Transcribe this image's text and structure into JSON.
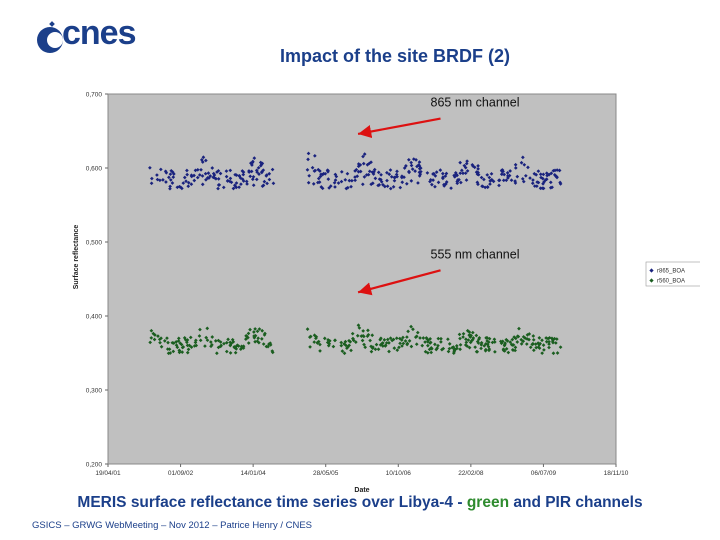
{
  "header": {
    "logo_text": "cnes",
    "title": "Impact of the site BRDF (2)"
  },
  "caption": {
    "part1": "MERIS surface reflectance time series over Libya-4 - ",
    "green_word": "green",
    "part2": " and ",
    "pir_word": "PIR",
    "part3": " channels"
  },
  "footer": {
    "text": "GSICS – GRWG WebMeeting – Nov 2012 – Patrice Henry / CNES"
  },
  "colors": {
    "series865": "#1a237e",
    "series555": "#1b5e20",
    "plot_bg": "#c0c0c0",
    "arrow": "#dd1111",
    "brand": "#1b3f8a"
  },
  "chart_data": {
    "type": "scatter",
    "xlabel": "Date",
    "ylabel": "Surface reflectance",
    "xlim": [
      "2001-04-19",
      "2010-11-15"
    ],
    "ylim": [
      0.2,
      0.7
    ],
    "x_ticks": [
      "19/04/01",
      "01/09/02",
      "14/01/04",
      "28/05/05",
      "10/10/06",
      "22/02/08",
      "06/07/09",
      "18/11/10"
    ],
    "y_ticks": [
      "0,200",
      "0,300",
      "0,400",
      "0,500",
      "0,600",
      "0,700"
    ],
    "y_tick_values": [
      0.2,
      0.3,
      0.4,
      0.5,
      0.6,
      0.7
    ],
    "legend": [
      "r865_BOA",
      "r560_BOA"
    ],
    "legend_position": "right",
    "annotations": [
      {
        "text": "865 nm channel",
        "target_date": "2005-12-01",
        "target_value": 0.646,
        "text_date": "2007-06-01",
        "text_value": 0.683
      },
      {
        "text": "555 nm channel",
        "target_date": "2005-12-01",
        "target_value": 0.432,
        "text_date": "2007-06-01",
        "text_value": 0.478
      }
    ],
    "series": [
      {
        "name": "r865_BOA",
        "approx_mean": 0.585,
        "range": [
          0.56,
          0.635
        ],
        "seasonal_peaks": [
          0.615,
          0.63,
          0.62,
          0.63,
          0.625,
          0.615,
          0.61,
          0.625,
          0.61,
          0.62,
          0.615,
          0.62,
          0.61,
          0.615,
          0.61
        ],
        "start": "2002-02-01",
        "end": "2009-11-01"
      },
      {
        "name": "r560_BOA",
        "approx_mean": 0.36,
        "range": [
          0.34,
          0.4
        ],
        "seasonal_peaks": [
          0.39,
          0.395,
          0.39,
          0.395,
          0.395,
          0.39,
          0.385,
          0.395,
          0.39,
          0.39,
          0.39,
          0.395,
          0.39,
          0.39,
          0.39
        ],
        "start": "2002-02-01",
        "end": "2009-11-01"
      }
    ]
  }
}
